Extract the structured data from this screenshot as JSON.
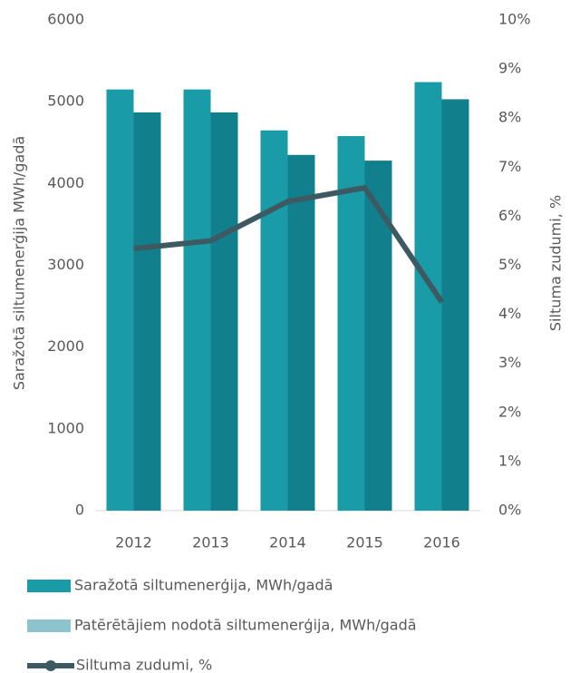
{
  "chart_data": {
    "type": "bar_line",
    "categories": [
      "2012",
      "2013",
      "2014",
      "2015",
      "2016"
    ],
    "series": [
      {
        "name": "Saražotā siltumenerģija, MWh/gadā",
        "type": "bar",
        "color": "#1a9ba8",
        "legend_color": "#1a9ba8",
        "values": [
          5150,
          5150,
          4650,
          4580,
          5240
        ]
      },
      {
        "name": "Patērētājiem nodotā siltumenerģija, MWh/gadā",
        "type": "bar",
        "color": "#11808c",
        "legend_color": "#8cc3cc",
        "values": [
          4870,
          4870,
          4350,
          4280,
          5030
        ]
      },
      {
        "name": "Siltuma zudumi, %",
        "type": "line",
        "axis": "y2",
        "color": "#3d5a63",
        "values": [
          5.34,
          5.5,
          6.3,
          6.58,
          4.25
        ]
      }
    ],
    "ylabel": "Saražotā siltumenerģija MWh/gadā",
    "y2label": "Siltuma zudumi, %",
    "ylim": [
      0,
      6000
    ],
    "yticks": [
      0,
      1000,
      2000,
      3000,
      4000,
      5000,
      6000
    ],
    "y2lim": [
      0,
      10
    ],
    "y2ticks": [
      {
        "value": 0,
        "label": "0%"
      },
      {
        "value": 1,
        "label": "1%"
      },
      {
        "value": 2,
        "label": "2%"
      },
      {
        "value": 3,
        "label": "3%"
      },
      {
        "value": 4,
        "label": "4%"
      },
      {
        "value": 5,
        "label": "5%"
      },
      {
        "value": 6,
        "label": "6%"
      },
      {
        "value": 7,
        "label": "7%"
      },
      {
        "value": 8,
        "label": "8%"
      },
      {
        "value": 9,
        "label": "9%"
      },
      {
        "value": 10,
        "label": "10%"
      }
    ],
    "grid": false,
    "legend": "bottom"
  }
}
